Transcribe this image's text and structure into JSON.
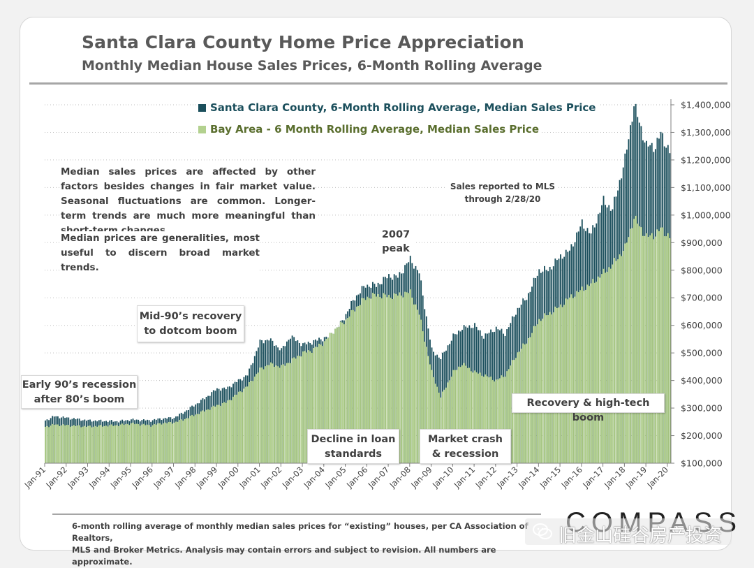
{
  "title": "Santa Clara County Home Price Appreciation",
  "subtitle": "Monthly Median House Sales Prices, 6-Month Rolling Average",
  "legend": {
    "santa_clara": "Santa Clara County, 6-Month Rolling Average, Median Sales Price",
    "bay_area": "Bay Area - 6 Month Rolling Average, Median Sales Price"
  },
  "notes": {
    "p1": "Median sales prices are affected by other factors besides changes in fair market value. Seasonal fluctuations are common. Longer-term trends are much more meaningful than short-term changes.",
    "p2": "Median prices are generalities, most useful to discern broad market trends."
  },
  "sales_note": {
    "line1": "Sales reported to MLS",
    "line2": "through 2/28/20"
  },
  "annotations": {
    "early90s_l1": "Early 90’s recession",
    "early90s_l2": "after 80’s boom",
    "mid90s_l1": "Mid-90’s recovery",
    "mid90s_l2": "to dotcom boom",
    "peak_l1": "2007",
    "peak_l2": "peak",
    "decline_l1": "Decline in loan",
    "decline_l2": "standards",
    "crash_l1": "Market crash",
    "crash_l2": "& recession",
    "recovery": "Recovery & high-tech boom"
  },
  "footnote": {
    "line1": "6-month rolling average of monthly median sales prices for “existing” houses, per CA Association of Realtors,",
    "line2": "MLS and Broker Metrics.  Analysis may contain errors and subject to revision. All numbers are approximate."
  },
  "brand": "COMPASS",
  "watermark": "旧金山硅谷房产投资",
  "colors": {
    "santa_clara": "#1b4f5c",
    "bay_area": "#b3d18f",
    "bay_area_edge": "#94b56e",
    "text": "#404040",
    "legend_sc_text": "#1b4f5c",
    "legend_ba_text": "#5a6e2e"
  },
  "chart_data": {
    "type": "bar",
    "x_start": "Jan-91",
    "x_end": "Feb-20",
    "frequency": "monthly",
    "xtick_labels": [
      "Jan-91",
      "Jan-92",
      "Jan-93",
      "Jan-94",
      "Jan-95",
      "Jan-96",
      "Jan-97",
      "Jan-98",
      "Jan-99",
      "Jan-00",
      "Jan-01",
      "Jan-02",
      "Jan-03",
      "Jan-04",
      "Jan-05",
      "Jan-06",
      "Jan-07",
      "Jan-08",
      "Jan-09",
      "Jan-10",
      "Jan-11",
      "Jan-12",
      "Jan-13",
      "Jan-14",
      "Jan-15",
      "Jan-16",
      "Jan-17",
      "Jan-18",
      "Jan-19",
      "Jan-20"
    ],
    "ytick_labels": [
      "$100,000",
      "$200,000",
      "$300,000",
      "$400,000",
      "$500,000",
      "$600,000",
      "$700,000",
      "$800,000",
      "$900,000",
      "$1,000,000",
      "$1,100,000",
      "$1,200,000",
      "$1,300,000",
      "$1,400,000"
    ],
    "ylim": [
      100000,
      1400000
    ],
    "y_axis_side": "right",
    "series": [
      {
        "name": "Santa Clara County, 6-Month Rolling Average, Median Sales Price",
        "interpolation": "linear between keypoints, with seasonal variation",
        "keypoints": [
          [
            "1991-01",
            255000
          ],
          [
            "1991-06",
            270000
          ],
          [
            "1993-01",
            255000
          ],
          [
            "1994-06",
            252000
          ],
          [
            "1995-01",
            258000
          ],
          [
            "1995-12",
            255000
          ],
          [
            "1996-06",
            262000
          ],
          [
            "1997-01",
            265000
          ],
          [
            "1997-06",
            283000
          ],
          [
            "1998-06",
            335000
          ],
          [
            "1999-01",
            370000
          ],
          [
            "1999-06",
            370000
          ],
          [
            "2000-01",
            400000
          ],
          [
            "2000-06",
            420000
          ],
          [
            "2001-01",
            540000
          ],
          [
            "2001-06",
            550000
          ],
          [
            "2002-01",
            510000
          ],
          [
            "2002-06",
            560000
          ],
          [
            "2003-01",
            530000
          ],
          [
            "2003-06",
            540000
          ],
          [
            "2004-01",
            555000
          ],
          [
            "2004-06",
            560000
          ],
          [
            "2005-01",
            640000
          ],
          [
            "2005-06",
            700000
          ],
          [
            "2005-12",
            745000
          ],
          [
            "2006-06",
            745000
          ],
          [
            "2007-01",
            780000
          ],
          [
            "2007-06",
            775000
          ],
          [
            "2008-01",
            840000
          ],
          [
            "2008-06",
            790000
          ],
          [
            "2009-01",
            510000
          ],
          [
            "2009-06",
            480000
          ],
          [
            "2010-01",
            560000
          ],
          [
            "2010-06",
            590000
          ],
          [
            "2011-01",
            600000
          ],
          [
            "2011-06",
            560000
          ],
          [
            "2012-01",
            590000
          ],
          [
            "2012-06",
            570000
          ],
          [
            "2013-01",
            660000
          ],
          [
            "2013-06",
            700000
          ],
          [
            "2014-01",
            800000
          ],
          [
            "2014-06",
            800000
          ],
          [
            "2015-01",
            850000
          ],
          [
            "2015-06",
            870000
          ],
          [
            "2016-01",
            970000
          ],
          [
            "2016-06",
            930000
          ],
          [
            "2017-01",
            1050000
          ],
          [
            "2017-06",
            1020000
          ],
          [
            "2018-01",
            1200000
          ],
          [
            "2018-06",
            1400000
          ],
          [
            "2019-01",
            1250000
          ],
          [
            "2019-06",
            1250000
          ],
          [
            "2019-09",
            1295000
          ],
          [
            "2020-02",
            1230000
          ]
        ]
      },
      {
        "name": "Bay Area - 6 Month Rolling Average, Median Sales Price",
        "interpolation": "linear between keypoints, with seasonal variation",
        "keypoints": [
          [
            "1991-01",
            232000
          ],
          [
            "1991-06",
            240000
          ],
          [
            "1993-01",
            233000
          ],
          [
            "1994-06",
            238000
          ],
          [
            "1995-01",
            244000
          ],
          [
            "1995-12",
            237000
          ],
          [
            "1996-06",
            245000
          ],
          [
            "1997-01",
            248000
          ],
          [
            "1997-06",
            258000
          ],
          [
            "1998-06",
            290000
          ],
          [
            "1999-01",
            310000
          ],
          [
            "1999-06",
            320000
          ],
          [
            "2000-01",
            355000
          ],
          [
            "2000-06",
            380000
          ],
          [
            "2001-01",
            440000
          ],
          [
            "2001-06",
            460000
          ],
          [
            "2002-01",
            450000
          ],
          [
            "2002-06",
            470000
          ],
          [
            "2003-01",
            500000
          ],
          [
            "2003-06",
            510000
          ],
          [
            "2004-01",
            540000
          ],
          [
            "2004-06",
            580000
          ],
          [
            "2005-01",
            620000
          ],
          [
            "2005-06",
            660000
          ],
          [
            "2005-12",
            700000
          ],
          [
            "2006-06",
            710000
          ],
          [
            "2007-01",
            705000
          ],
          [
            "2007-06",
            710000
          ],
          [
            "2008-01",
            720000
          ],
          [
            "2008-06",
            640000
          ],
          [
            "2009-01",
            430000
          ],
          [
            "2009-06",
            340000
          ],
          [
            "2010-01",
            430000
          ],
          [
            "2010-06",
            460000
          ],
          [
            "2011-01",
            430000
          ],
          [
            "2011-06",
            420000
          ],
          [
            "2012-01",
            400000
          ],
          [
            "2012-06",
            420000
          ],
          [
            "2013-01",
            500000
          ],
          [
            "2013-06",
            540000
          ],
          [
            "2014-01",
            620000
          ],
          [
            "2014-06",
            640000
          ],
          [
            "2015-01",
            670000
          ],
          [
            "2015-06",
            700000
          ],
          [
            "2016-01",
            730000
          ],
          [
            "2016-06",
            750000
          ],
          [
            "2017-01",
            790000
          ],
          [
            "2017-06",
            820000
          ],
          [
            "2018-01",
            880000
          ],
          [
            "2018-06",
            990000
          ],
          [
            "2019-01",
            920000
          ],
          [
            "2019-06",
            930000
          ],
          [
            "2019-09",
            950000
          ],
          [
            "2020-02",
            920000
          ]
        ]
      }
    ],
    "legend_position": "top-center",
    "grid": "horizontal dotted"
  }
}
